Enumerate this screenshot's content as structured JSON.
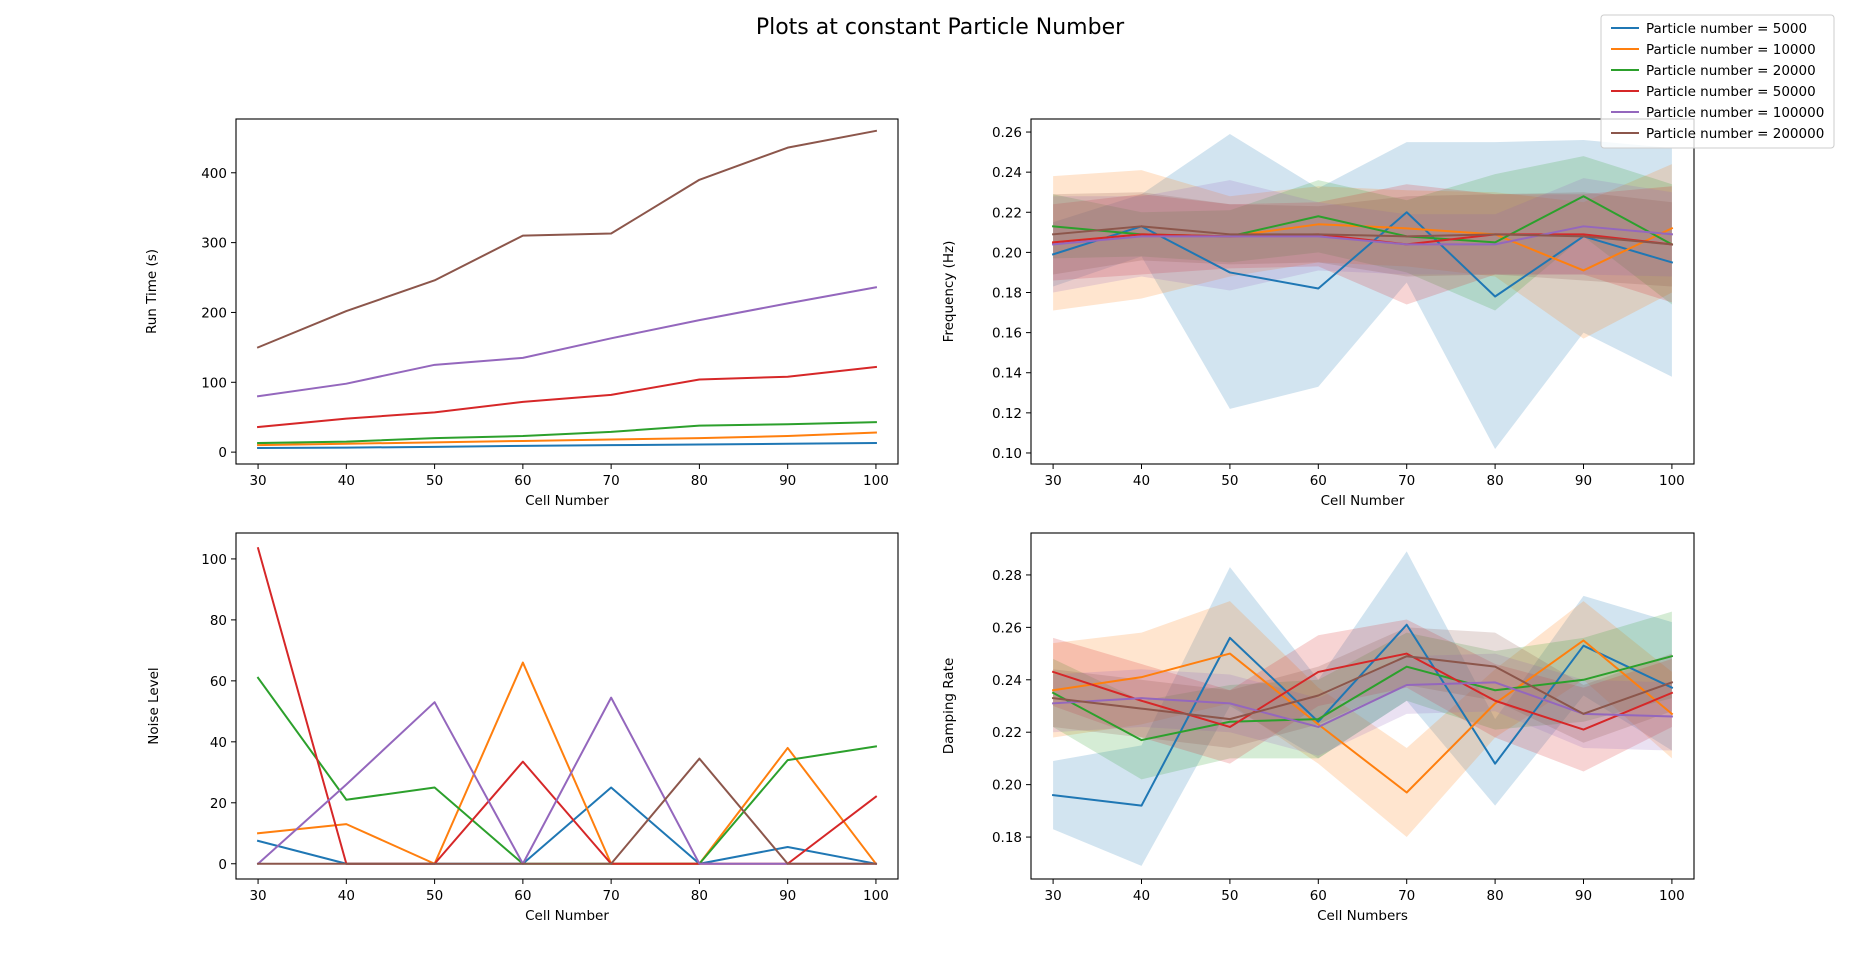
{
  "figure": {
    "title": "Plots at constant Particle Number"
  },
  "legend": {
    "placement": "top-right",
    "entries": [
      {
        "label": "Particle number = 5000",
        "color": "#1f77b4"
      },
      {
        "label": "Particle number = 10000",
        "color": "#ff7f0e"
      },
      {
        "label": "Particle number = 20000",
        "color": "#2ca02c"
      },
      {
        "label": "Particle number = 50000",
        "color": "#d62728"
      },
      {
        "label": "Particle number = 100000",
        "color": "#9467bd"
      },
      {
        "label": "Particle number = 200000",
        "color": "#8c564b"
      }
    ]
  },
  "chart_data": [
    {
      "type": "line",
      "position": "top-left",
      "title": "",
      "xlabel": "Cell Number",
      "ylabel": "Run Time (s)",
      "x": [
        30,
        40,
        50,
        60,
        70,
        80,
        90,
        100
      ],
      "xlim": [
        27.5,
        102.5
      ],
      "ylim": [
        -17,
        477
      ],
      "xticks": [
        30,
        40,
        50,
        60,
        70,
        80,
        90,
        100
      ],
      "yticks": [
        0,
        100,
        200,
        300,
        400
      ],
      "grid": false,
      "series": [
        {
          "name": "Particle number = 5000",
          "color": "#1f77b4",
          "values": [
            6,
            6.5,
            7.5,
            9,
            10,
            11,
            12,
            13
          ]
        },
        {
          "name": "Particle number = 10000",
          "color": "#ff7f0e",
          "values": [
            10,
            12,
            14,
            16,
            18,
            20,
            23,
            28
          ]
        },
        {
          "name": "Particle number = 20000",
          "color": "#2ca02c",
          "values": [
            13,
            15,
            20,
            23,
            29,
            38,
            40,
            43
          ]
        },
        {
          "name": "Particle number = 50000",
          "color": "#d62728",
          "values": [
            36,
            48,
            57,
            72,
            82,
            104,
            108,
            122
          ]
        },
        {
          "name": "Particle number = 100000",
          "color": "#9467bd",
          "values": [
            80,
            98,
            125,
            135,
            163,
            189,
            213,
            236
          ]
        },
        {
          "name": "Particle number = 200000",
          "color": "#8c564b",
          "values": [
            150,
            202,
            246,
            310,
            313,
            390,
            436,
            460
          ]
        }
      ]
    },
    {
      "type": "line",
      "position": "top-right",
      "title": "",
      "xlabel": "Cell Number",
      "ylabel": "Frequency (Hz)",
      "x": [
        30,
        40,
        50,
        60,
        70,
        80,
        90,
        100
      ],
      "xlim": [
        27.5,
        102.5
      ],
      "ylim": [
        0.0945,
        0.2665
      ],
      "xticks": [
        30,
        40,
        50,
        60,
        70,
        80,
        90,
        100
      ],
      "yticks": [
        0.1,
        0.12,
        0.14,
        0.16,
        0.18,
        0.2,
        0.22,
        0.24,
        0.26
      ],
      "ytick_labels": [
        "0.10",
        "0.12",
        "0.14",
        "0.16",
        "0.18",
        "0.20",
        "0.22",
        "0.24",
        "0.26"
      ],
      "grid": false,
      "band_opacity": 0.2,
      "series": [
        {
          "name": "Particle number = 5000",
          "color": "#1f77b4",
          "values": [
            0.199,
            0.213,
            0.19,
            0.182,
            0.22,
            0.178,
            0.208,
            0.195
          ],
          "lower": [
            0.183,
            0.198,
            0.122,
            0.133,
            0.185,
            0.102,
            0.16,
            0.138
          ],
          "upper": [
            0.215,
            0.229,
            0.259,
            0.232,
            0.255,
            0.255,
            0.256,
            0.252
          ]
        },
        {
          "name": "Particle number = 10000",
          "color": "#ff7f0e",
          "values": [
            0.205,
            0.209,
            0.208,
            0.214,
            0.212,
            0.209,
            0.191,
            0.212
          ],
          "lower": [
            0.171,
            0.177,
            0.188,
            0.195,
            0.193,
            0.188,
            0.157,
            0.18
          ],
          "upper": [
            0.238,
            0.241,
            0.228,
            0.233,
            0.231,
            0.23,
            0.225,
            0.244
          ]
        },
        {
          "name": "Particle number = 20000",
          "color": "#2ca02c",
          "values": [
            0.213,
            0.209,
            0.208,
            0.218,
            0.208,
            0.205,
            0.228,
            0.204
          ],
          "lower": [
            0.197,
            0.198,
            0.195,
            0.2,
            0.19,
            0.171,
            0.208,
            0.174
          ],
          "upper": [
            0.229,
            0.22,
            0.221,
            0.236,
            0.226,
            0.239,
            0.248,
            0.234
          ]
        },
        {
          "name": "Particle number = 50000",
          "color": "#d62728",
          "values": [
            0.205,
            0.209,
            0.208,
            0.209,
            0.204,
            0.209,
            0.209,
            0.204
          ],
          "lower": [
            0.186,
            0.189,
            0.192,
            0.193,
            0.174,
            0.189,
            0.189,
            0.175
          ],
          "upper": [
            0.224,
            0.229,
            0.224,
            0.225,
            0.234,
            0.229,
            0.229,
            0.233
          ]
        },
        {
          "name": "Particle number = 100000",
          "color": "#9467bd",
          "values": [
            0.204,
            0.208,
            0.208,
            0.208,
            0.204,
            0.204,
            0.213,
            0.209
          ],
          "lower": [
            0.18,
            0.188,
            0.181,
            0.191,
            0.189,
            0.189,
            0.189,
            0.188
          ],
          "upper": [
            0.228,
            0.228,
            0.236,
            0.225,
            0.219,
            0.219,
            0.237,
            0.23
          ]
        },
        {
          "name": "Particle number = 200000",
          "color": "#8c564b",
          "values": [
            0.209,
            0.213,
            0.209,
            0.209,
            0.208,
            0.209,
            0.208,
            0.204
          ],
          "lower": [
            0.189,
            0.196,
            0.194,
            0.195,
            0.188,
            0.189,
            0.186,
            0.183
          ],
          "upper": [
            0.229,
            0.23,
            0.224,
            0.223,
            0.228,
            0.229,
            0.23,
            0.225
          ]
        }
      ]
    },
    {
      "type": "line",
      "position": "bottom-left",
      "title": "",
      "xlabel": "Cell Number",
      "ylabel": "Noise Level",
      "x": [
        30,
        40,
        50,
        60,
        70,
        80,
        90,
        100
      ],
      "xlim": [
        27.5,
        102.5
      ],
      "ylim": [
        -5,
        108.5
      ],
      "xticks": [
        30,
        40,
        50,
        60,
        70,
        80,
        90,
        100
      ],
      "yticks": [
        0,
        20,
        40,
        60,
        80,
        100
      ],
      "grid": false,
      "series": [
        {
          "name": "Particle number = 5000",
          "color": "#1f77b4",
          "values": [
            7.5,
            0,
            0,
            0,
            25,
            0,
            5.5,
            0
          ]
        },
        {
          "name": "Particle number = 10000",
          "color": "#ff7f0e",
          "values": [
            10,
            13,
            0,
            66,
            0,
            0,
            38,
            0
          ]
        },
        {
          "name": "Particle number = 20000",
          "color": "#2ca02c",
          "values": [
            61,
            21,
            25,
            0,
            0,
            0,
            34,
            38.5
          ]
        },
        {
          "name": "Particle number = 50000",
          "color": "#d62728",
          "values": [
            103.5,
            0,
            0,
            33.5,
            0,
            0,
            0,
            22
          ]
        },
        {
          "name": "Particle number = 100000",
          "color": "#9467bd",
          "values": [
            0,
            26,
            53,
            0,
            54.5,
            0,
            0,
            0
          ]
        },
        {
          "name": "Particle number = 200000",
          "color": "#8c564b",
          "values": [
            0,
            0,
            0,
            0,
            0,
            34.5,
            0,
            0
          ]
        }
      ]
    },
    {
      "type": "line",
      "position": "bottom-right",
      "title": "",
      "xlabel": "Cell Numbers",
      "ylabel": "Damping Rate",
      "x": [
        30,
        40,
        50,
        60,
        70,
        80,
        90,
        100
      ],
      "xlim": [
        27.5,
        102.5
      ],
      "ylim": [
        0.164,
        0.296
      ],
      "xticks": [
        30,
        40,
        50,
        60,
        70,
        80,
        90,
        100
      ],
      "yticks": [
        0.18,
        0.2,
        0.22,
        0.24,
        0.26,
        0.28
      ],
      "ytick_labels": [
        "0.18",
        "0.20",
        "0.22",
        "0.24",
        "0.26",
        "0.28"
      ],
      "grid": false,
      "band_opacity": 0.2,
      "series": [
        {
          "name": "Particle number = 5000",
          "color": "#1f77b4",
          "values": [
            0.196,
            0.192,
            0.256,
            0.224,
            0.261,
            0.208,
            0.253,
            0.237
          ],
          "lower": [
            0.183,
            0.169,
            0.23,
            0.21,
            0.232,
            0.192,
            0.234,
            0.213
          ],
          "upper": [
            0.209,
            0.215,
            0.283,
            0.24,
            0.289,
            0.225,
            0.272,
            0.262
          ]
        },
        {
          "name": "Particle number = 10000",
          "color": "#ff7f0e",
          "values": [
            0.236,
            0.241,
            0.25,
            0.223,
            0.197,
            0.231,
            0.255,
            0.227
          ],
          "lower": [
            0.218,
            0.223,
            0.231,
            0.208,
            0.18,
            0.218,
            0.24,
            0.21
          ],
          "upper": [
            0.254,
            0.258,
            0.27,
            0.237,
            0.214,
            0.244,
            0.27,
            0.243
          ]
        },
        {
          "name": "Particle number = 20000",
          "color": "#2ca02c",
          "values": [
            0.235,
            0.217,
            0.224,
            0.225,
            0.245,
            0.236,
            0.24,
            0.249
          ],
          "lower": [
            0.222,
            0.202,
            0.21,
            0.21,
            0.232,
            0.221,
            0.224,
            0.233
          ],
          "upper": [
            0.248,
            0.232,
            0.238,
            0.24,
            0.258,
            0.251,
            0.256,
            0.266
          ]
        },
        {
          "name": "Particle number = 50000",
          "color": "#d62728",
          "values": [
            0.243,
            0.232,
            0.222,
            0.243,
            0.25,
            0.232,
            0.221,
            0.235
          ],
          "lower": [
            0.23,
            0.218,
            0.208,
            0.23,
            0.237,
            0.218,
            0.205,
            0.222
          ],
          "upper": [
            0.256,
            0.246,
            0.236,
            0.257,
            0.263,
            0.246,
            0.237,
            0.248
          ]
        },
        {
          "name": "Particle number = 100000",
          "color": "#9467bd",
          "values": [
            0.231,
            0.233,
            0.231,
            0.222,
            0.238,
            0.239,
            0.227,
            0.226
          ],
          "lower": [
            0.22,
            0.222,
            0.22,
            0.211,
            0.227,
            0.228,
            0.214,
            0.213
          ],
          "upper": [
            0.242,
            0.244,
            0.242,
            0.233,
            0.249,
            0.25,
            0.24,
            0.239
          ]
        },
        {
          "name": "Particle number = 200000",
          "color": "#8c564b",
          "values": [
            0.233,
            0.229,
            0.225,
            0.234,
            0.249,
            0.245,
            0.227,
            0.239
          ],
          "lower": [
            0.222,
            0.218,
            0.214,
            0.223,
            0.238,
            0.232,
            0.216,
            0.228
          ],
          "upper": [
            0.244,
            0.24,
            0.236,
            0.245,
            0.26,
            0.258,
            0.238,
            0.25
          ]
        }
      ]
    }
  ]
}
